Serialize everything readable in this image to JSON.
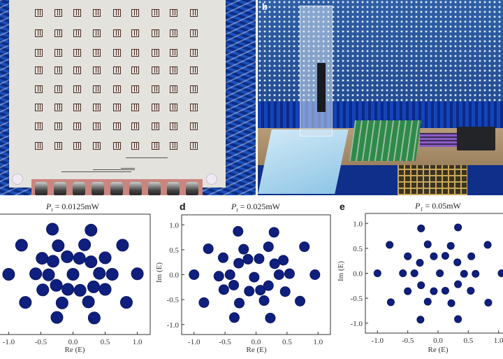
{
  "photos": {
    "left": {
      "description_label": ""
    },
    "right": {
      "label": "b"
    }
  },
  "panels": [
    {
      "label": "",
      "title_var": "P",
      "title_sub": "t",
      "title_rest": " = 0.0125mW",
      "xlabel": "Re (E)",
      "ylabel": ""
    },
    {
      "label": "d",
      "title_var": "P",
      "title_sub": "t",
      "title_rest": " = 0.025mW",
      "xlabel": "Re (E)",
      "ylabel": "Im (E)"
    },
    {
      "label": "e",
      "title_var": "P",
      "title_sub": "1",
      "title_rest": " = 0.05mW",
      "xlabel": "Re (E)",
      "ylabel": "Im (E)"
    }
  ],
  "chart_data": [
    {
      "type": "scatter",
      "title": "Pt = 0.0125mW",
      "xlabel": "Re (E)",
      "ylabel": "",
      "xlim": [
        -1.2,
        1.2
      ],
      "ylim": [
        -1.2,
        1.2
      ],
      "xticks": [
        "-1.0",
        "-0.5",
        "0.0",
        "0.5",
        "1.0"
      ],
      "yticks": [
        "-1.0",
        "-0.5",
        "0.0",
        "0.5",
        "1.0"
      ],
      "ytick_labels_visible": false,
      "grid": false,
      "marker_color": "#0f1f7e",
      "points": [
        [
          -1.0,
          0
        ],
        [
          1.0,
          0.01
        ],
        [
          -0.8,
          0.58
        ],
        [
          0.77,
          0.58
        ],
        [
          -0.74,
          -0.56
        ],
        [
          0.83,
          -0.56
        ],
        [
          -0.32,
          0.9
        ],
        [
          0.28,
          0.88
        ],
        [
          -0.25,
          -0.86
        ],
        [
          0.33,
          -0.87
        ],
        [
          -0.23,
          0.57
        ],
        [
          0.18,
          0.59
        ],
        [
          -0.17,
          -0.57
        ],
        [
          0.24,
          -0.55
        ],
        [
          -0.48,
          0.32
        ],
        [
          0.5,
          0.33
        ],
        [
          -0.47,
          -0.31
        ],
        [
          0.5,
          -0.3
        ],
        [
          -0.09,
          0.35
        ],
        [
          0.1,
          0.32
        ],
        [
          -0.31,
          0.26
        ],
        [
          0.28,
          0.25
        ],
        [
          -0.58,
          0.01
        ],
        [
          -0.38,
          -0.01
        ],
        [
          0,
          0
        ],
        [
          0.41,
          0.02
        ],
        [
          0.61,
          0
        ],
        [
          -0.26,
          -0.22
        ],
        [
          -0.08,
          -0.3
        ],
        [
          0.11,
          -0.32
        ],
        [
          0.32,
          -0.25
        ]
      ]
    },
    {
      "type": "scatter",
      "title": "Pt = 0.025mW",
      "xlabel": "Re (E)",
      "ylabel": "Im (E)",
      "xlim": [
        -1.2,
        1.2
      ],
      "ylim": [
        -1.2,
        1.2
      ],
      "xticks": [
        "-1.0",
        "-0.5",
        "0.0",
        "0.5",
        "1.0"
      ],
      "yticks": [
        "-1.0",
        "-0.5",
        "0.0",
        "0.5",
        "1.0"
      ],
      "ytick_labels_visible": true,
      "grid": false,
      "marker_color": "#0f1f7e",
      "points": [
        [
          -1,
          0
        ],
        [
          0.95,
          0
        ],
        [
          -0.77,
          0.52
        ],
        [
          0.78,
          0.56
        ],
        [
          -0.84,
          -0.56
        ],
        [
          0.71,
          -0.53
        ],
        [
          -0.29,
          0.87
        ],
        [
          0.29,
          0.85
        ],
        [
          -0.35,
          -0.86
        ],
        [
          0.23,
          -0.87
        ],
        [
          -0.2,
          0.51
        ],
        [
          0.2,
          0.56
        ],
        [
          -0.27,
          -0.57
        ],
        [
          0.13,
          -0.52
        ],
        [
          -0.53,
          0.34
        ],
        [
          0.44,
          0.29
        ],
        [
          -0.52,
          -0.3
        ],
        [
          0.47,
          -0.34
        ],
        [
          -0.13,
          0.31
        ],
        [
          0.05,
          0.32
        ],
        [
          -0.28,
          0.23
        ],
        [
          0.3,
          0.22
        ],
        [
          -0.6,
          -0.03
        ],
        [
          -0.42,
          0
        ],
        [
          -0.03,
          -0.05
        ],
        [
          0.37,
          0
        ],
        [
          0.54,
          0.02
        ],
        [
          -0.36,
          -0.21
        ],
        [
          -0.11,
          -0.33
        ],
        [
          0.07,
          -0.31
        ],
        [
          0.2,
          -0.22
        ]
      ]
    },
    {
      "type": "scatter",
      "title": "P1 = 0.05mW",
      "xlabel": "Re (E)",
      "ylabel": "Im (E)",
      "xlim": [
        -1.2,
        1.2
      ],
      "ylim": [
        -1.2,
        1.2
      ],
      "xticks": [
        "-1.0",
        "-0.5",
        "0.0",
        "0.5",
        "1.0"
      ],
      "yticks": [
        "-1.0",
        "-0.5",
        "0.0",
        "0.5",
        "1.0"
      ],
      "ytick_labels_visible": true,
      "grid": false,
      "marker_color": "#0f1f7e",
      "points": [
        [
          -1,
          0
        ],
        [
          1.05,
          0
        ],
        [
          -0.8,
          0.57
        ],
        [
          0.82,
          0.57
        ],
        [
          -0.78,
          -0.58
        ],
        [
          0.83,
          -0.59
        ],
        [
          -0.28,
          0.9
        ],
        [
          0.33,
          0.92
        ],
        [
          -0.29,
          -0.93
        ],
        [
          0.33,
          -0.92
        ],
        [
          -0.17,
          0.58
        ],
        [
          0.21,
          0.55
        ],
        [
          -0.17,
          -0.57
        ],
        [
          0.22,
          -0.6
        ],
        [
          -0.5,
          0.34
        ],
        [
          0.55,
          0.34
        ],
        [
          -0.5,
          -0.36
        ],
        [
          0.54,
          -0.35
        ],
        [
          -0.07,
          0.34
        ],
        [
          0.12,
          0.35
        ],
        [
          -0.07,
          -0.36
        ],
        [
          0.12,
          -0.35
        ],
        [
          -0.3,
          0.21
        ],
        [
          0.32,
          0.22
        ],
        [
          -0.28,
          -0.24
        ],
        [
          0.33,
          -0.22
        ],
        [
          -0.58,
          0
        ],
        [
          -0.39,
          0
        ],
        [
          0.03,
          0
        ],
        [
          0.43,
          -0.01
        ],
        [
          0.62,
          -0.01
        ]
      ]
    }
  ]
}
